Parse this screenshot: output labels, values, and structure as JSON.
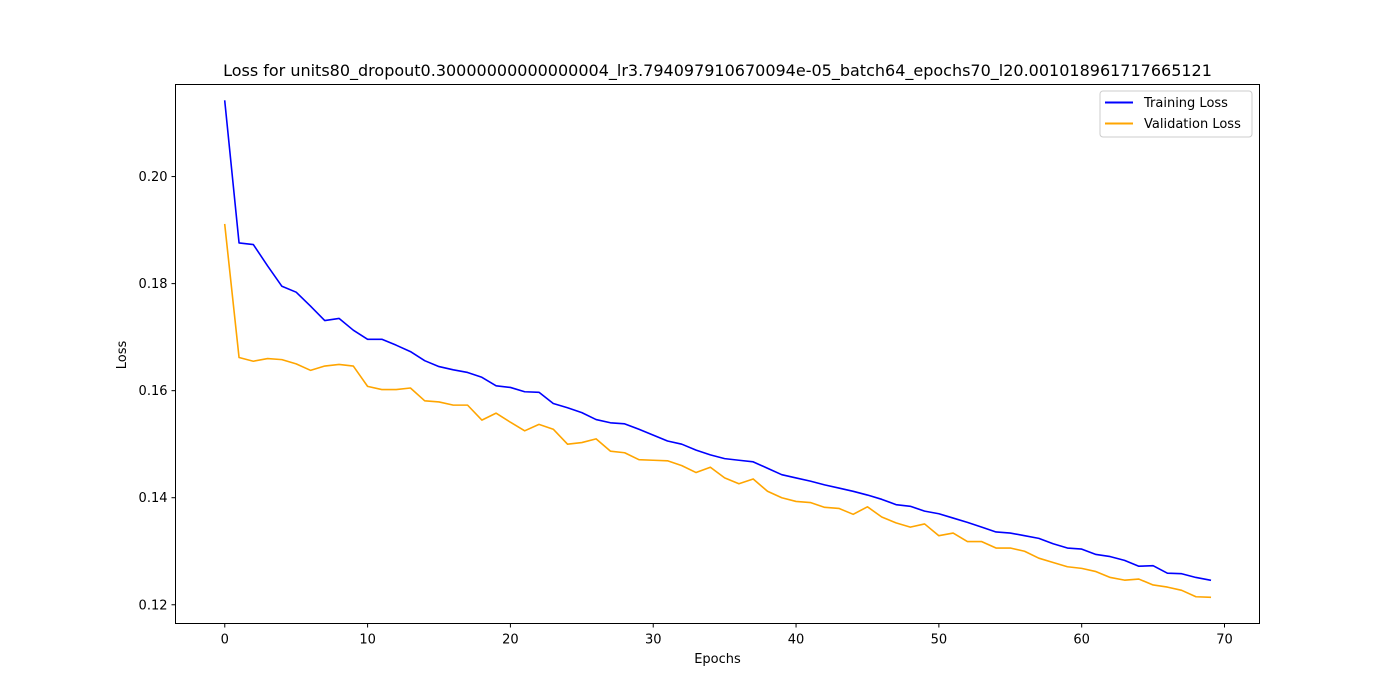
{
  "chart_data": {
    "type": "line",
    "title": "Loss for units80_dropout0.30000000000000004_lr3.794097910670094e-05_batch64_epochs70_l20.001018961717665121",
    "xlabel": "Epochs",
    "ylabel": "Loss",
    "xlim": [
      -3.45,
      72.45
    ],
    "ylim": [
      0.1165,
      0.2172
    ],
    "xticks": [
      0,
      10,
      20,
      30,
      40,
      50,
      60,
      70
    ],
    "yticks": [
      0.12,
      0.14,
      0.16,
      0.18,
      0.2
    ],
    "ytick_labels": [
      "0.12",
      "0.14",
      "0.16",
      "0.18",
      "0.20"
    ],
    "grid": false,
    "legend_position": "top-right",
    "x": [
      0,
      1,
      2,
      3,
      4,
      5,
      6,
      7,
      8,
      9,
      10,
      11,
      12,
      13,
      14,
      15,
      16,
      17,
      18,
      19,
      20,
      21,
      22,
      23,
      24,
      25,
      26,
      27,
      28,
      29,
      30,
      31,
      32,
      33,
      34,
      35,
      36,
      37,
      38,
      39,
      40,
      41,
      42,
      43,
      44,
      45,
      46,
      47,
      48,
      49,
      50,
      51,
      52,
      53,
      54,
      55,
      56,
      57,
      58,
      59,
      60,
      61,
      62,
      63,
      64,
      65,
      66,
      67,
      68,
      69
    ],
    "series": [
      {
        "name": "Training Loss",
        "color": "#0000ff",
        "values": [
          0.2141,
          0.1876,
          0.1873,
          0.1833,
          0.1795,
          0.1784,
          0.1758,
          0.1731,
          0.1735,
          0.1713,
          0.1696,
          0.1696,
          0.1685,
          0.1673,
          0.1656,
          0.1645,
          0.1639,
          0.1634,
          0.1625,
          0.1609,
          0.1606,
          0.1598,
          0.1597,
          0.1576,
          0.1568,
          0.1559,
          0.1546,
          0.154,
          0.1538,
          0.1528,
          0.1517,
          0.1506,
          0.15,
          0.1489,
          0.148,
          0.1473,
          0.147,
          0.1467,
          0.1455,
          0.1443,
          0.1437,
          0.1431,
          0.1424,
          0.1418,
          0.1412,
          0.1405,
          0.1397,
          0.1387,
          0.1384,
          0.1375,
          0.137,
          0.1362,
          0.1354,
          0.1345,
          0.1336,
          0.1334,
          0.1329,
          0.1324,
          0.1314,
          0.1306,
          0.1304,
          0.1294,
          0.129,
          0.1283,
          0.1272,
          0.1273,
          0.1259,
          0.1258,
          0.1251,
          0.1246
        ]
      },
      {
        "name": "Validation Loss",
        "color": "#ffa500",
        "values": [
          0.191,
          0.1662,
          0.1655,
          0.166,
          0.1658,
          0.165,
          0.1638,
          0.1646,
          0.1649,
          0.1646,
          0.1608,
          0.1602,
          0.1602,
          0.1605,
          0.1581,
          0.1579,
          0.1573,
          0.1573,
          0.1545,
          0.1558,
          0.1541,
          0.1525,
          0.1537,
          0.1528,
          0.15,
          0.1503,
          0.151,
          0.1487,
          0.1484,
          0.1471,
          0.147,
          0.1469,
          0.146,
          0.1447,
          0.1457,
          0.1437,
          0.1426,
          0.1435,
          0.1412,
          0.14,
          0.1393,
          0.1391,
          0.1382,
          0.138,
          0.1369,
          0.1383,
          0.1364,
          0.1353,
          0.1345,
          0.1351,
          0.1329,
          0.1334,
          0.1318,
          0.1318,
          0.1306,
          0.1306,
          0.13,
          0.1287,
          0.1279,
          0.1271,
          0.1268,
          0.1262,
          0.1251,
          0.1246,
          0.1248,
          0.1237,
          0.1233,
          0.1227,
          0.1215,
          0.1214
        ]
      }
    ]
  }
}
